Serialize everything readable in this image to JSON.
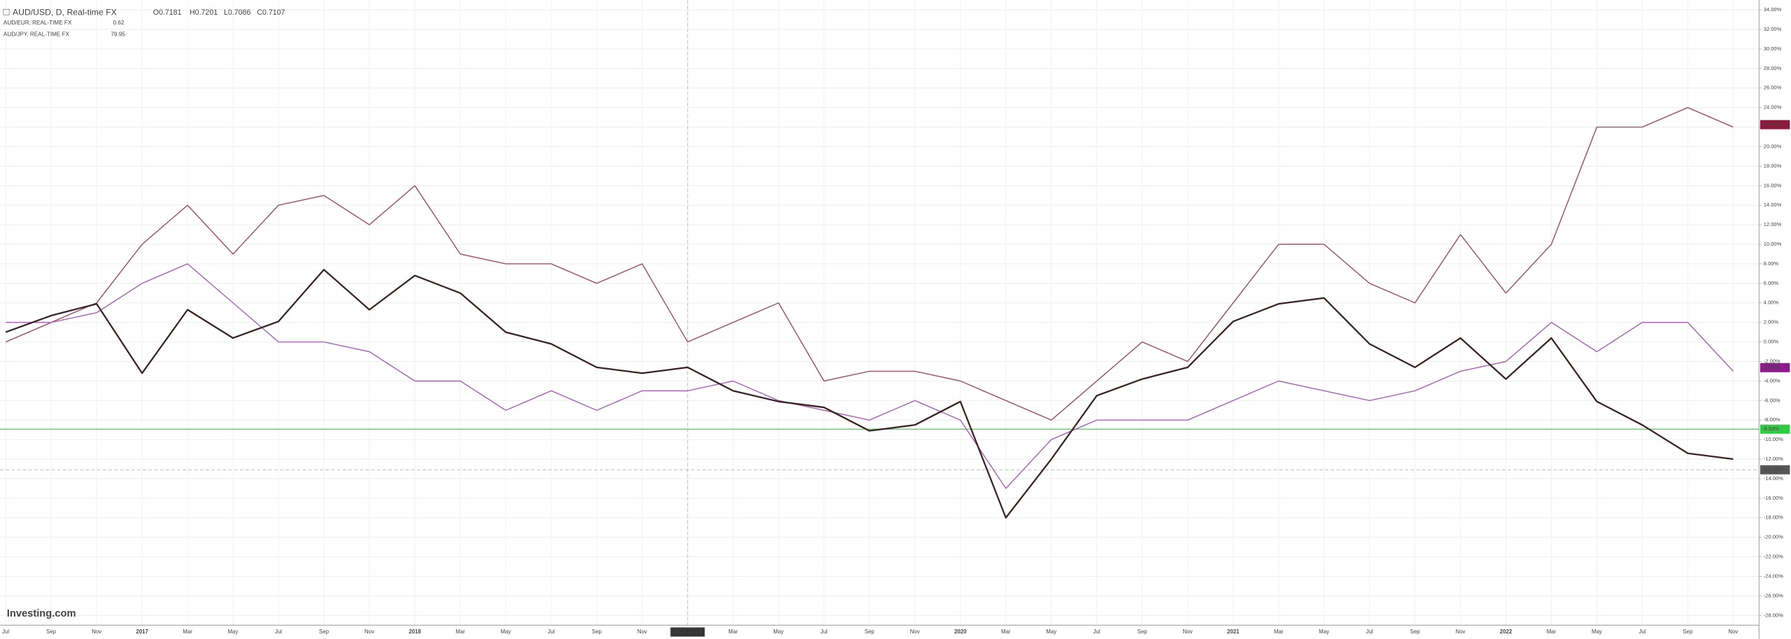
{
  "chart_data": {
    "type": "line",
    "header": {
      "symbol": "AUD/USD, D, Real-time FX",
      "open": "O0.7181",
      "high": "H0.7201",
      "low": "L0.7086",
      "close": "C0.7107"
    },
    "logo": "Investing.com",
    "categories": [
      "Jul",
      "Sep",
      "Nov",
      "2017",
      "Mar",
      "May",
      "Jul",
      "Sep",
      "Nov",
      "2018",
      "Mar",
      "May",
      "Jul",
      "Sep",
      "Nov",
      "2018-12-19",
      "Mar",
      "May",
      "Jul",
      "Sep",
      "Nov",
      "2020",
      "Mar",
      "May",
      "Jul",
      "Sep",
      "Nov",
      "2021",
      "Mar",
      "May",
      "Jul",
      "Sep",
      "Nov",
      "2022",
      "Mar",
      "May",
      "Jul",
      "Sep",
      "Nov"
    ],
    "crosshair_category": 15,
    "series": [
      {
        "name": "AUD/USD, D, Real-time FX",
        "color": "#3b2323",
        "values": [
          1,
          2.7,
          3.9,
          -3.2,
          3.3,
          0.4,
          2.1,
          7.4,
          3.3,
          6.8,
          5,
          1,
          -0.2,
          -2.6,
          -3.2,
          -2.6,
          -5,
          -6.1,
          -6.7,
          -9.1,
          -8.5,
          -6.1,
          -18,
          -12,
          -5.5,
          -3.8,
          -2.6,
          2.1,
          3.9,
          4.5,
          -0.2,
          -2.6,
          0.4,
          -3.8,
          0.4,
          -6.1,
          -8.5,
          -11.4,
          -12
        ]
      },
      {
        "name": "AUD/EUR, REAL-TIME FX",
        "legend_value": "0.62",
        "color": "#a866b8",
        "values": [
          2,
          2,
          3,
          6,
          8,
          4,
          0,
          0,
          -1,
          -4,
          -4,
          -7,
          -5,
          -7,
          -5,
          -5,
          -4,
          -6,
          -7,
          -8,
          -6,
          -8,
          -15,
          -10,
          -8,
          -8,
          -8,
          -6,
          -4,
          -5,
          -6,
          -5,
          -3,
          -2,
          2,
          -1,
          2,
          2,
          -3
        ]
      },
      {
        "name": "AUD/JPY, REAL-TIME FX",
        "legend_value": "79.95",
        "color": "#a0526e",
        "values": [
          0,
          2,
          4,
          10,
          14,
          9,
          14,
          15,
          12,
          16,
          9,
          8,
          8,
          6,
          8,
          0,
          2,
          4,
          -4,
          -3,
          -3,
          -4,
          -6,
          -8,
          -4,
          0,
          -2,
          4,
          10,
          10,
          6,
          4,
          11,
          5,
          10,
          22,
          22,
          24,
          22
        ]
      }
    ],
    "ylim": [
      -29,
      35
    ],
    "yticks": [
      {
        "value": -28,
        "label": "-28.00%"
      },
      {
        "value": -26,
        "label": "-26.00%"
      },
      {
        "value": -24,
        "label": "-24.00%"
      },
      {
        "value": -22,
        "label": "-22.00%"
      },
      {
        "value": -20,
        "label": "-20.00%"
      },
      {
        "value": -18,
        "label": "-18.00%"
      },
      {
        "value": -16,
        "label": "-16.00%"
      },
      {
        "value": -14,
        "label": "-14.00%"
      },
      {
        "value": -12,
        "label": "-12.00%"
      },
      {
        "value": -10,
        "label": "-10.00%"
      },
      {
        "value": -8,
        "label": "-8.00%"
      },
      {
        "value": -6,
        "label": "-6.00%"
      },
      {
        "value": -4,
        "label": "-4.00%"
      },
      {
        "value": -2,
        "label": "-2.00%"
      },
      {
        "value": 0,
        "label": "0.00%"
      },
      {
        "value": 2,
        "label": "2.00%"
      },
      {
        "value": 4,
        "label": "4.00%"
      },
      {
        "value": 6,
        "label": "6.00%"
      },
      {
        "value": 8,
        "label": "8.00%"
      },
      {
        "value": 10,
        "label": "10.00%"
      },
      {
        "value": 12,
        "label": "12.00%"
      },
      {
        "value": 14,
        "label": "14.00%"
      },
      {
        "value": 16,
        "label": "16.00%"
      },
      {
        "value": 18,
        "label": "18.00%"
      },
      {
        "value": 20,
        "label": "20.00%"
      },
      {
        "value": 22,
        "label": "22.00%"
      },
      {
        "value": 24,
        "label": "24.00%"
      },
      {
        "value": 26,
        "label": "26.00%"
      },
      {
        "value": 28,
        "label": "28.00%"
      },
      {
        "value": 30,
        "label": "30.00%"
      },
      {
        "value": 32,
        "label": "32.00%"
      },
      {
        "value": 34,
        "label": "34.00%"
      }
    ],
    "grid": true,
    "price_tags": [
      {
        "value": 22.25,
        "label": "22.25%",
        "color": "#8b1a3e"
      },
      {
        "value": -2.63,
        "label": "-2.63%",
        "color": "#8e1a8e"
      },
      {
        "value": -8.93,
        "label": "-8.93%",
        "color": "#2ecc40"
      },
      {
        "value": -13.0895,
        "label": "-13.0895",
        "color": "#555555"
      }
    ]
  }
}
